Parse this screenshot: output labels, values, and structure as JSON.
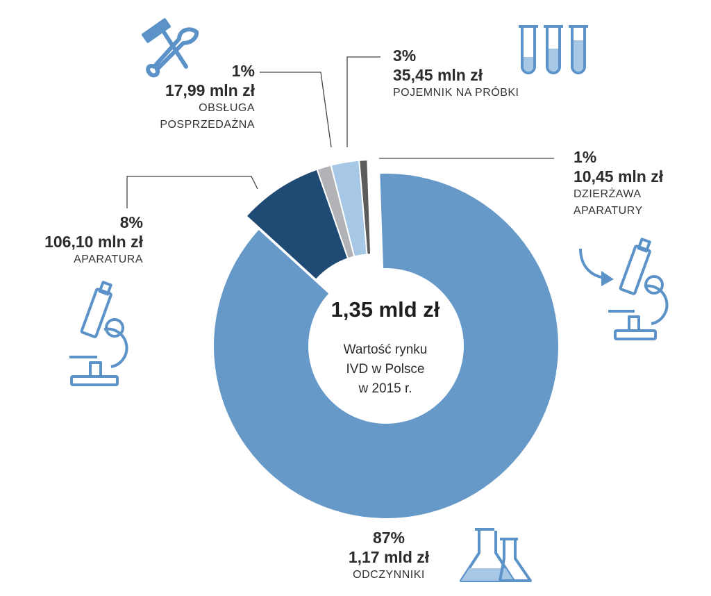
{
  "chart_data": {
    "type": "pie",
    "variant": "donut",
    "center": {
      "total": "1,35 mld zł",
      "description_lines": [
        "Wartość rynku",
        "IVD w Polsce",
        "w 2015 r."
      ]
    },
    "slices": [
      {
        "key": "odczynniki",
        "percent_label": "87%",
        "amount": "1,17 mld zł",
        "category": "ODCZYNNIKI",
        "value_mln": 1170,
        "color": "#6698c8",
        "exploded": false
      },
      {
        "key": "aparatura",
        "percent_label": "8%",
        "amount": "106,10 mln zł",
        "category": "APARATURA",
        "value_mln": 106.1,
        "color": "#1f4a74",
        "exploded": true
      },
      {
        "key": "obsluga",
        "percent_label": "1%",
        "amount": "17,99 mln zł",
        "category_lines": [
          "OBSŁUGA",
          "POSPRZEDAŻNA"
        ],
        "value_mln": 17.99,
        "color": "#b1b3b6",
        "exploded": true
      },
      {
        "key": "pojemnik",
        "percent_label": "3%",
        "amount": "35,45 mln zł",
        "category": "POJEMNIK NA PRÓBKI",
        "value_mln": 35.45,
        "color": "#a7c7e7",
        "exploded": true
      },
      {
        "key": "dzierzawa",
        "percent_label": "1%",
        "amount": "10,45 mln zł",
        "category_lines": [
          "DZIERŻAWA",
          "APARATURY"
        ],
        "value_mln": 10.45,
        "color": "#5c5c5c",
        "exploded": true
      }
    ],
    "icons": {
      "color": "#5b93c9",
      "items": [
        "tools-icon",
        "test-tubes-icon",
        "microscope-icon",
        "microscope-icon",
        "flasks-icon",
        "curved-arrow-icon"
      ]
    }
  }
}
